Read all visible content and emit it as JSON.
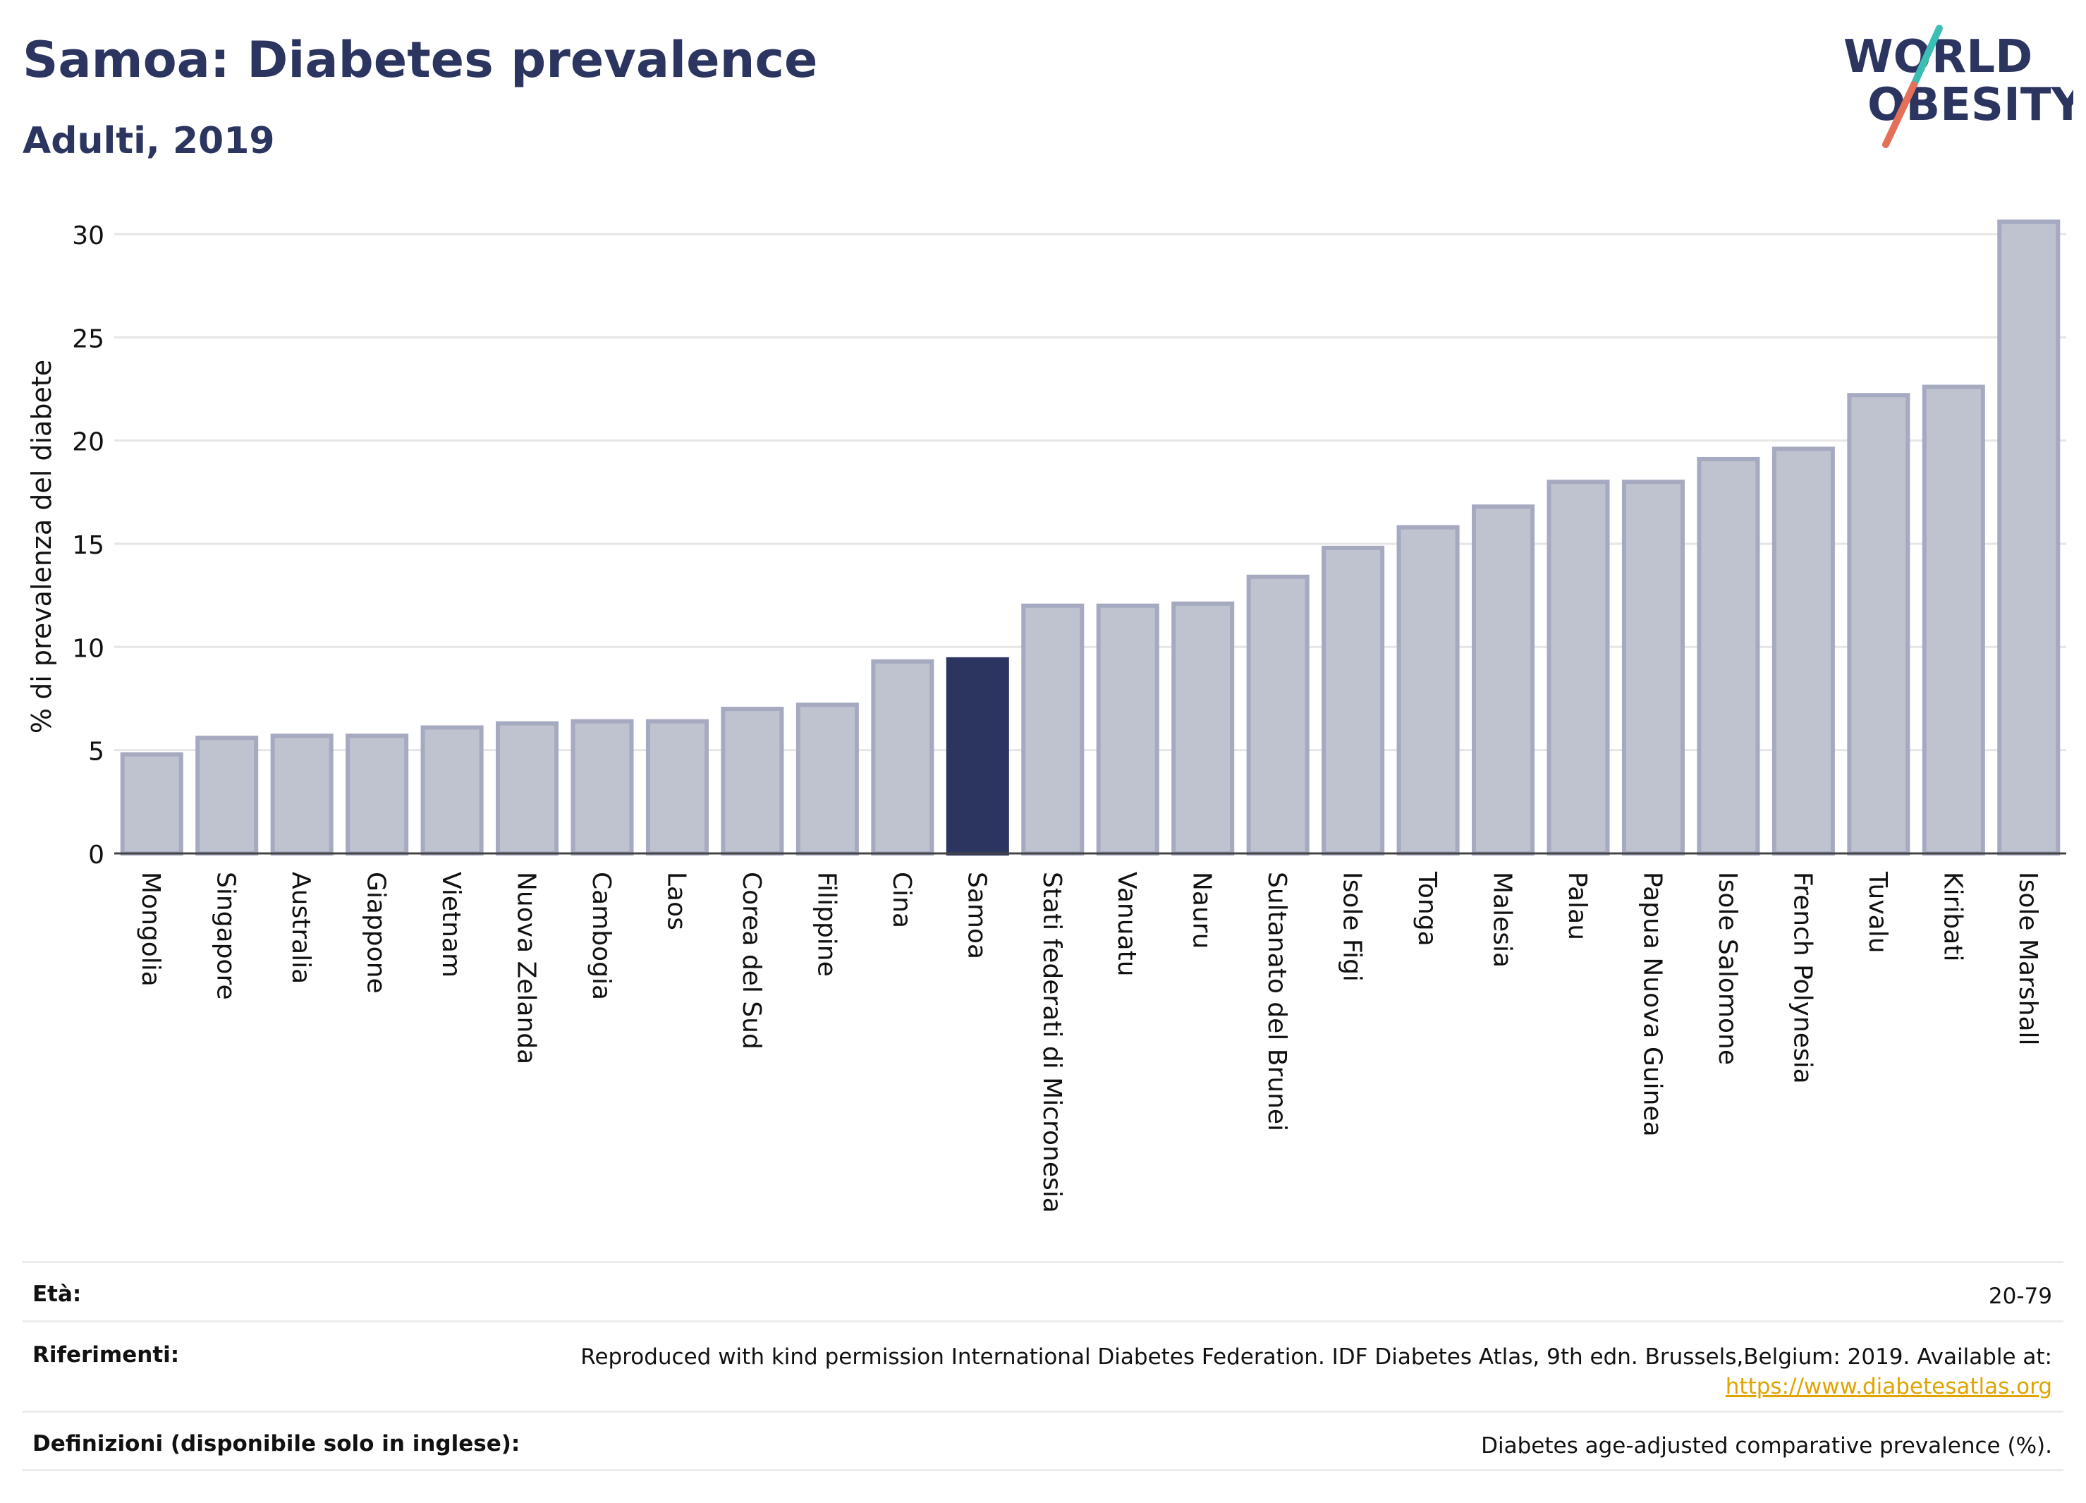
{
  "header": {
    "title": "Samoa: Diabetes prevalence",
    "subtitle": "Adulti, 2019",
    "logo_line1": "WORLD",
    "logo_line2": "OBESITY"
  },
  "chart_data": {
    "type": "bar",
    "ylabel": "% di prevalenza del diabete",
    "ylim": [
      0,
      31.5
    ],
    "yticks": [
      0,
      5,
      10,
      15,
      20,
      25,
      30
    ],
    "grid": true,
    "highlight": "Samoa",
    "categories": [
      "Mongolia",
      "Singapore",
      "Australia",
      "Giappone",
      "Vietnam",
      "Nuova Zelanda",
      "Cambogia",
      "Laos",
      "Corea del Sud",
      "Filippine",
      "Cina",
      "Samoa",
      "Stati federati di Micronesia",
      "Vanuatu",
      "Nauru",
      "Sultanato del Brunei",
      "Isole Figi",
      "Tonga",
      "Malesia",
      "Palau",
      "Papua Nuova Guinea",
      "Isole Salomone",
      "French Polynesia",
      "Tuvalu",
      "Kiribati",
      "Isole Marshall"
    ],
    "values": [
      4.8,
      5.6,
      5.7,
      5.7,
      6.1,
      6.3,
      6.4,
      6.4,
      7.0,
      7.2,
      9.3,
      9.4,
      12.0,
      12.0,
      12.1,
      13.4,
      14.8,
      15.8,
      16.8,
      18.0,
      18.0,
      19.1,
      19.6,
      22.2,
      22.6,
      30.6
    ],
    "colors": {
      "bar_fill": "#bfc2cf",
      "bar_stroke": "#a6aac0",
      "highlight_fill": "#2b3560",
      "grid": "#e6e6e6",
      "axis": "#444444"
    }
  },
  "footer": {
    "rows": [
      {
        "label": "Età:",
        "value": "20-79"
      },
      {
        "label": "Riferimenti:",
        "value": "Reproduced with kind permission International Diabetes Federation. IDF Diabetes Atlas, 9th edn. Brussels,Belgium: 2019. Available at:",
        "link": "https://www.diabetesatlas.org"
      },
      {
        "label": "Definizioni (disponibile solo in inglese):",
        "value": "Diabetes age-adjusted comparative prevalence (%)."
      }
    ]
  },
  "logo_colors": {
    "text": "#2b3560",
    "slash_top": "#3bbfb5",
    "slash_bottom": "#e5705a"
  }
}
